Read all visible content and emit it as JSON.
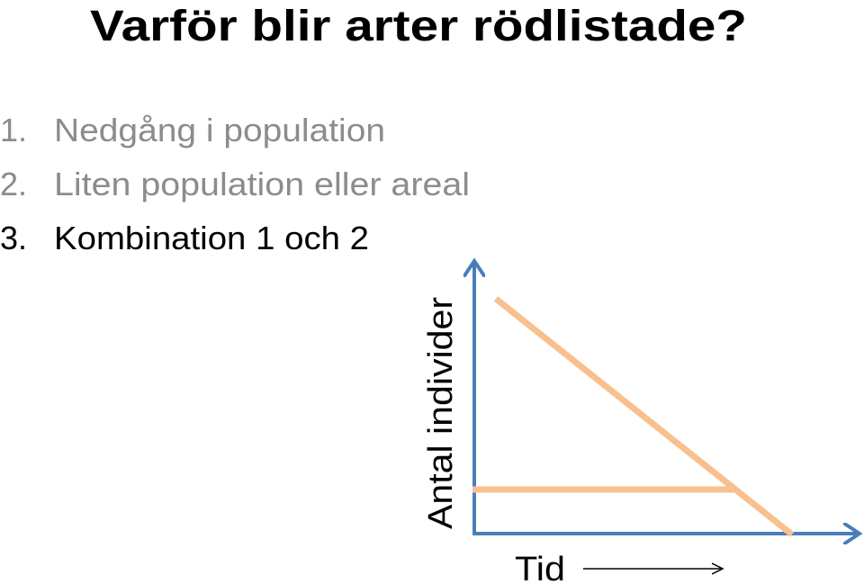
{
  "title": "Varför blir arter rödlistade?",
  "list": [
    {
      "number": "1.",
      "text": "Nedgång i population"
    },
    {
      "number": "2.",
      "text": "Liten population eller areal"
    },
    {
      "number": "3.",
      "text": "Kombination 1 och 2"
    }
  ],
  "diagram": {
    "y_label": "Antal individer",
    "x_label": "Tid"
  }
}
